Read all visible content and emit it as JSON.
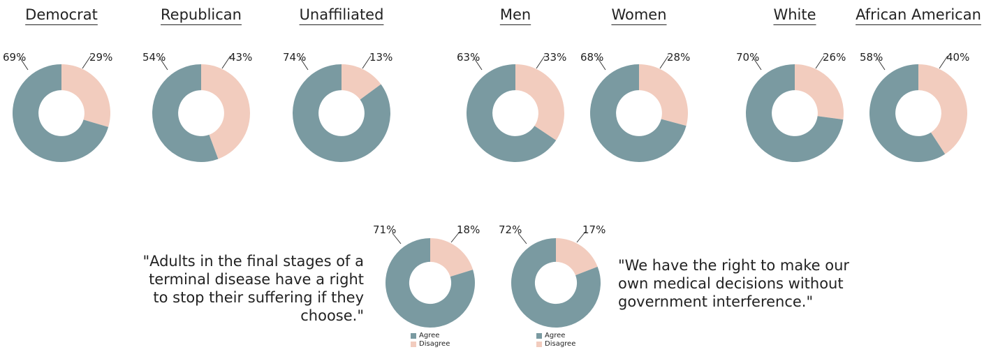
{
  "colors": {
    "agree": "#7a9aa1",
    "disagree": "#f2ccbe",
    "leader": "#333333"
  },
  "legend": {
    "agree_label": "Agree",
    "disagree_label": "Disagree"
  },
  "quotes": {
    "left": "\"Adults in the final stages of a terminal disease have a right to stop their suffering if they choose.\"",
    "right": "\"We have the right to make our own medical decisions without government interference.\""
  },
  "chart_data": [
    {
      "type": "pie",
      "title": "Democrat",
      "categories": [
        "Agree",
        "Disagree"
      ],
      "values": [
        69,
        29
      ],
      "labels": [
        "69%",
        "29%"
      ]
    },
    {
      "type": "pie",
      "title": "Republican",
      "categories": [
        "Agree",
        "Disagree"
      ],
      "values": [
        54,
        43
      ],
      "labels": [
        "54%",
        "43%"
      ]
    },
    {
      "type": "pie",
      "title": "Unaffiliated",
      "categories": [
        "Agree",
        "Disagree"
      ],
      "values": [
        74,
        13
      ],
      "labels": [
        "74%",
        "13%"
      ]
    },
    {
      "type": "pie",
      "title": "Men",
      "categories": [
        "Agree",
        "Disagree"
      ],
      "values": [
        63,
        33
      ],
      "labels": [
        "63%",
        "33%"
      ]
    },
    {
      "type": "pie",
      "title": "Women",
      "categories": [
        "Agree",
        "Disagree"
      ],
      "values": [
        68,
        28
      ],
      "labels": [
        "68%",
        "28%"
      ]
    },
    {
      "type": "pie",
      "title": "White",
      "categories": [
        "Agree",
        "Disagree"
      ],
      "values": [
        70,
        26
      ],
      "labels": [
        "70%",
        "26%"
      ]
    },
    {
      "type": "pie",
      "title": "African American",
      "categories": [
        "Agree",
        "Disagree"
      ],
      "values": [
        58,
        40
      ],
      "labels": [
        "58%",
        "40%"
      ]
    },
    {
      "type": "pie",
      "title": "",
      "categories": [
        "Agree",
        "Disagree"
      ],
      "values": [
        71,
        18
      ],
      "labels": [
        "71%",
        "18%"
      ],
      "legend": true
    },
    {
      "type": "pie",
      "title": "",
      "categories": [
        "Agree",
        "Disagree"
      ],
      "values": [
        72,
        17
      ],
      "labels": [
        "72%",
        "17%"
      ],
      "legend": true
    }
  ]
}
